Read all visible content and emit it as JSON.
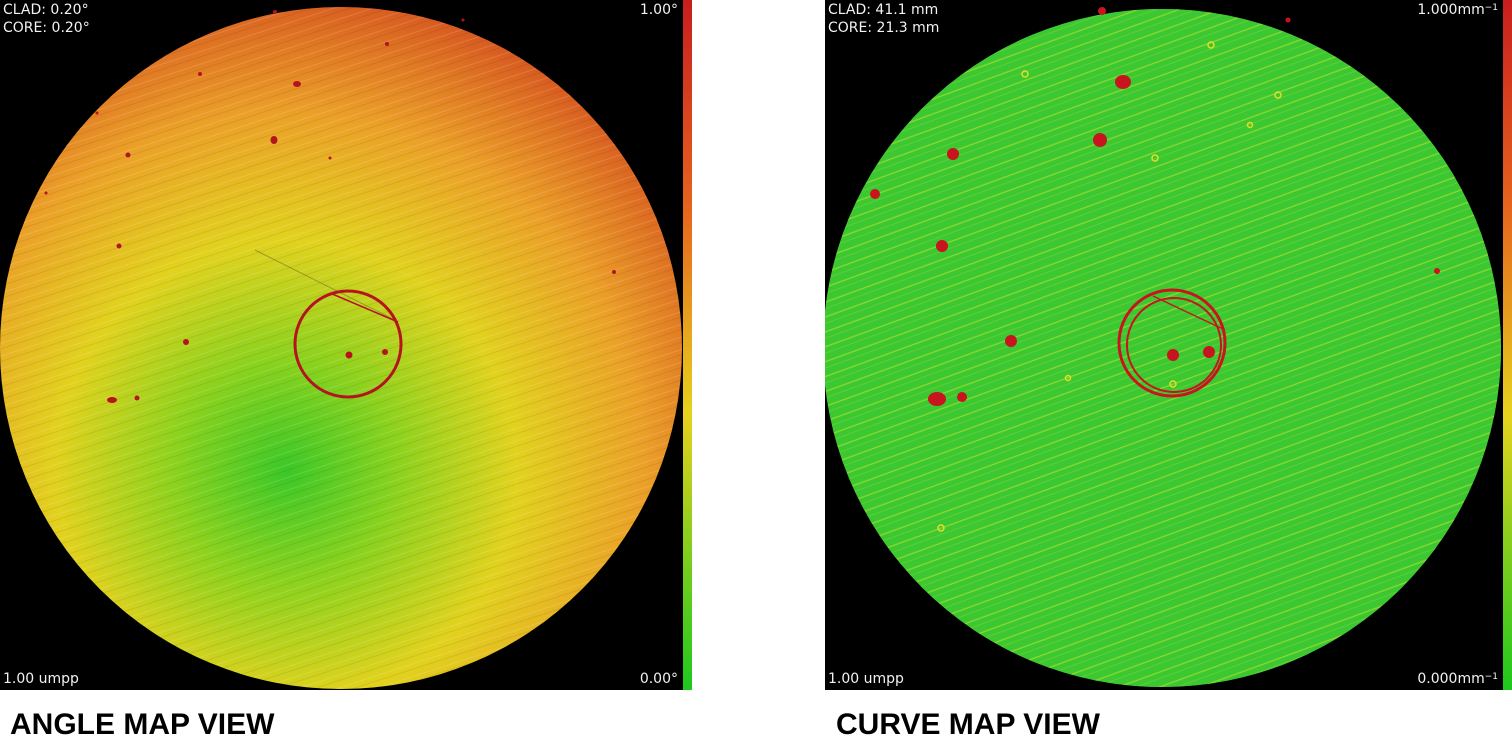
{
  "angle_map": {
    "clad": "CLAD: 0.20°",
    "core": "CORE: 0.20°",
    "scale_max": "1.00°",
    "scale_min": "0.00°",
    "resolution": "1.00 umpp",
    "caption": "ANGLE MAP VIEW",
    "colors": {
      "high": "#c8281e",
      "mid": "#e6d21e",
      "low": "#28c828"
    }
  },
  "curve_map": {
    "clad": "CLAD: 41.1 mm",
    "core": "CORE: 21.3 mm",
    "scale_max": "1.000mm",
    "scale_max_unit_exp": "−1",
    "scale_min": "0.000mm",
    "scale_min_unit_exp": "−1",
    "resolution": "1.00 umpp",
    "caption": "CURVE MAP VIEW",
    "colors": {
      "background": "#32c832",
      "defect": "#c81e1e",
      "ring": "#c81e1e"
    }
  }
}
